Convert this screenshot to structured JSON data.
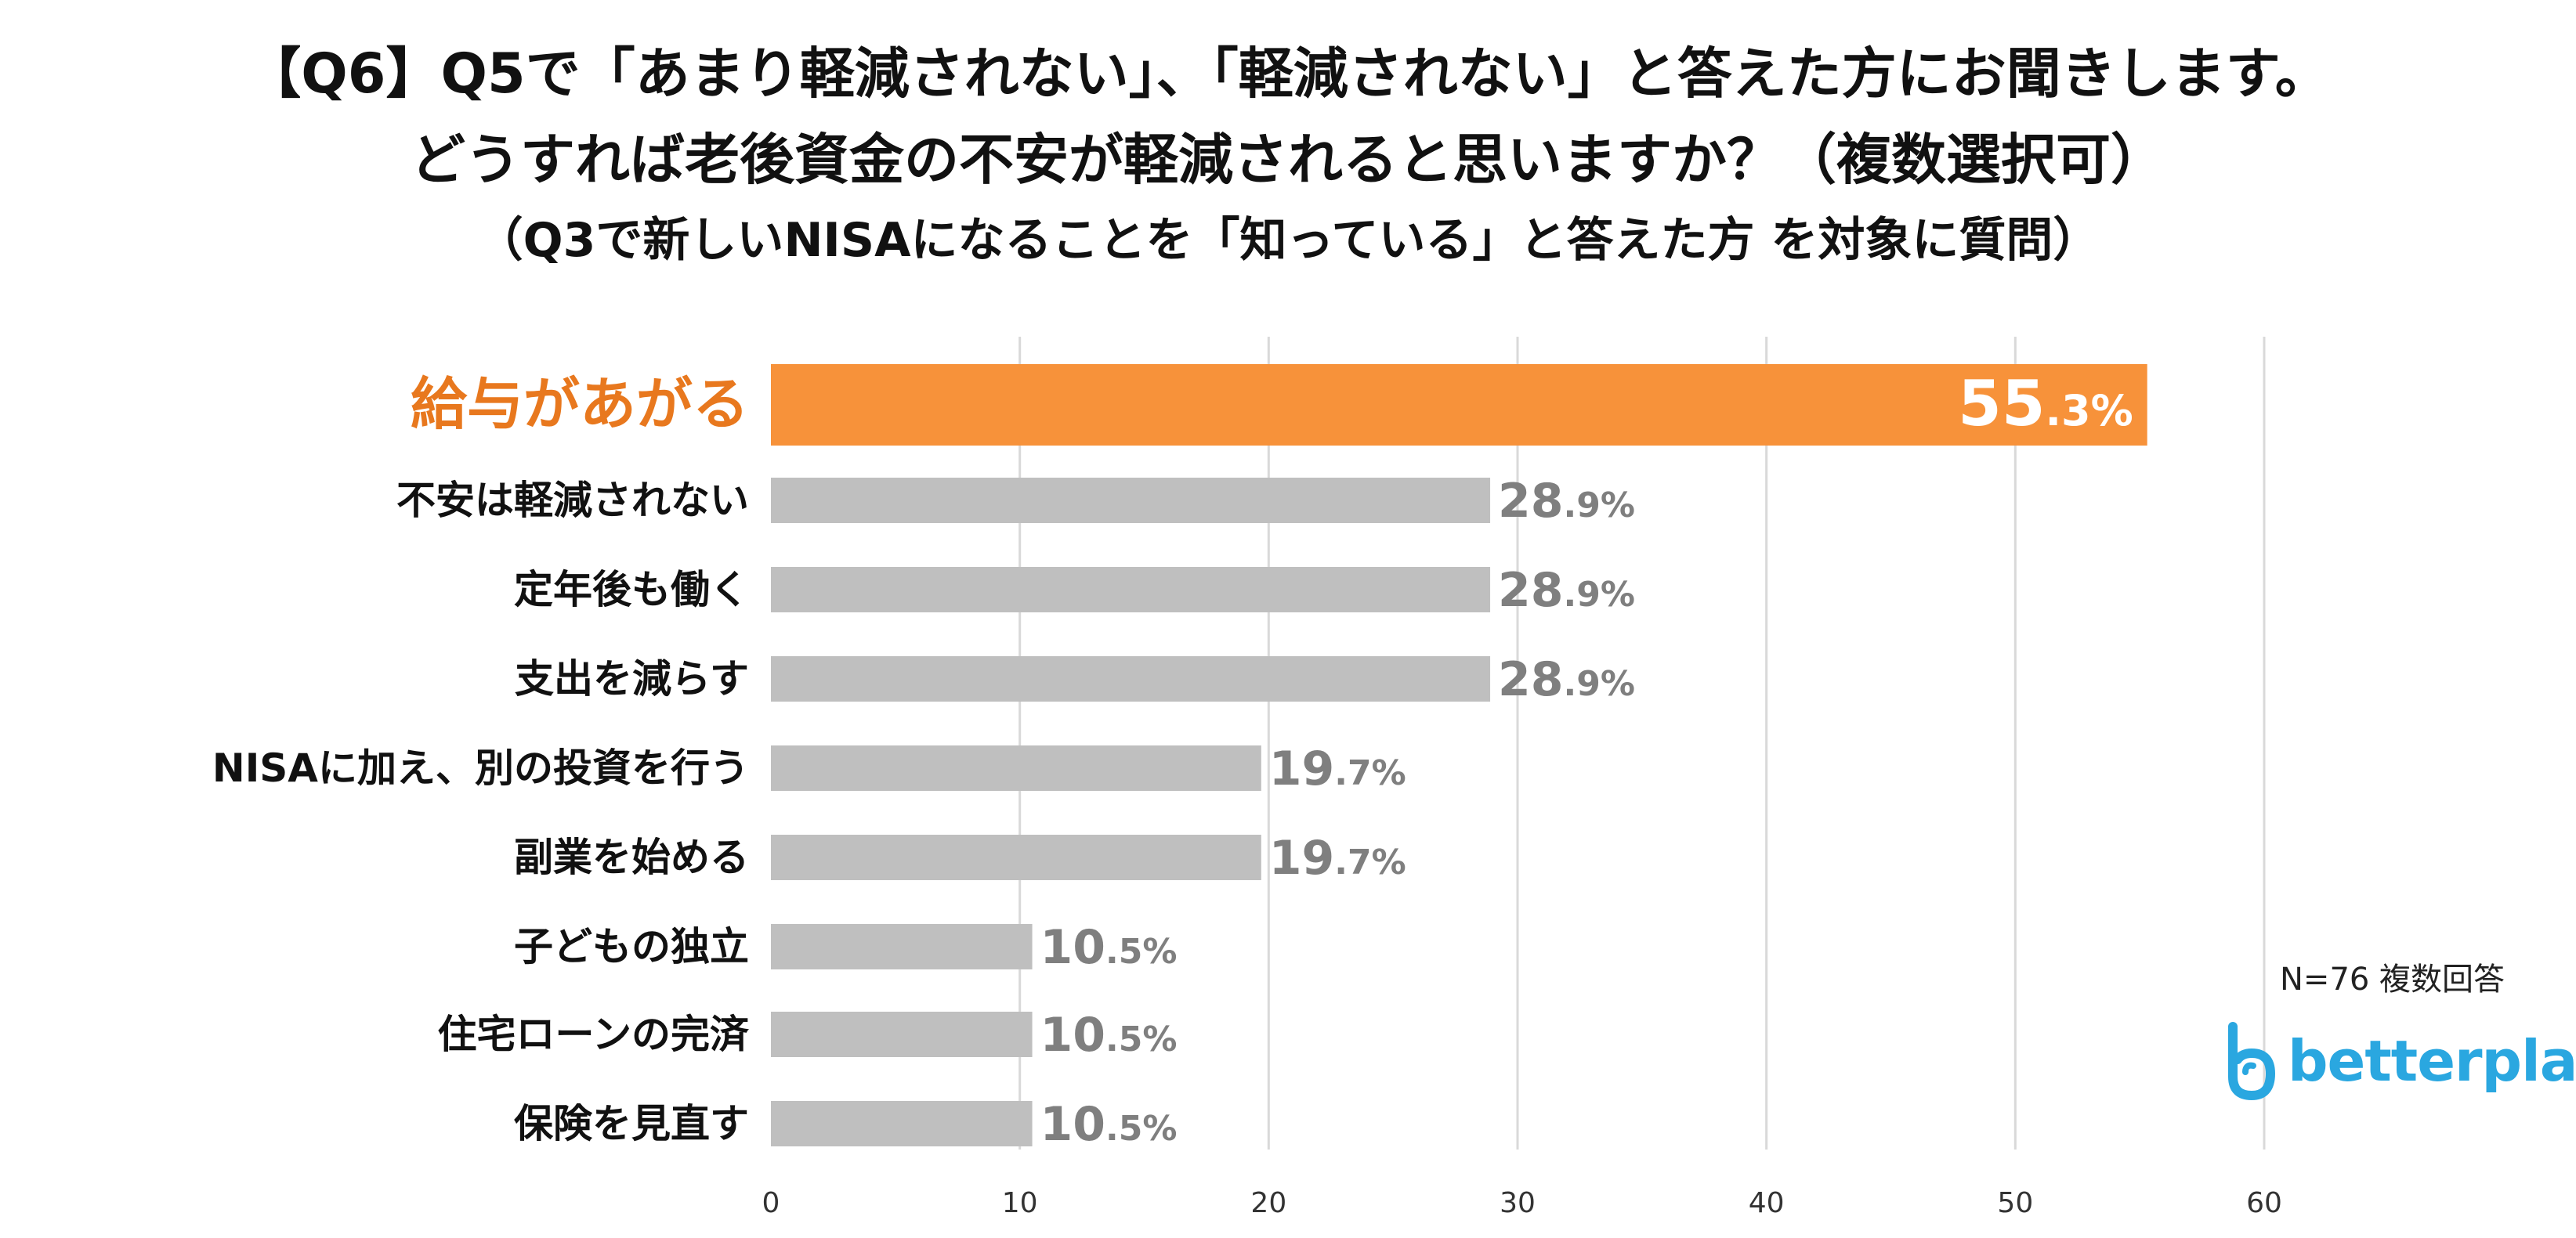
{
  "header": {
    "line1": "【Q6】Q5で「あまり軽減されない」、「軽減されない」と答えた方にお聞きします。",
    "line2": "どうすれば老後資金の不安が軽減されると思いますか？（複数選択可）",
    "line3": "（Q3で新しいNISAになることを「知っている」と答えた方 を対象に質問）"
  },
  "note": "N=76  複数回答",
  "logo": {
    "text": "betterplace",
    "icon": "betterplace-b-icon",
    "color": "#2aa7e0"
  },
  "colors": {
    "highlight": "#f7923a",
    "highlight_label": "#e8781e",
    "bar": "#bfbfbf",
    "value_text": "#7f7f7f",
    "grid": "#d9d9d9"
  },
  "chart_data": {
    "type": "bar",
    "orientation": "horizontal",
    "categories": [
      "給与があがる",
      "不安は軽減されない",
      "定年後も働く",
      "支出を減らす",
      "NISAに加え、別の投資を行う",
      "副業を始める",
      "子どもの独立",
      "住宅ローンの完済",
      "保険を見直す"
    ],
    "values": [
      55.3,
      28.9,
      28.9,
      28.9,
      19.7,
      19.7,
      10.5,
      10.5,
      10.5
    ],
    "value_labels": [
      {
        "int": "55",
        "dec": ".3%"
      },
      {
        "int": "28",
        "dec": ".9%"
      },
      {
        "int": "28",
        "dec": ".9%"
      },
      {
        "int": "28",
        "dec": ".9%"
      },
      {
        "int": "19",
        "dec": ".7%"
      },
      {
        "int": "19",
        "dec": ".7%"
      },
      {
        "int": "10",
        "dec": ".5%"
      },
      {
        "int": "10",
        "dec": ".5%"
      },
      {
        "int": "10",
        "dec": ".5%"
      }
    ],
    "highlight_index": 0,
    "xlim": [
      0,
      60
    ],
    "xticks": [
      0,
      10,
      20,
      30,
      40,
      50,
      60
    ],
    "grid": true
  }
}
